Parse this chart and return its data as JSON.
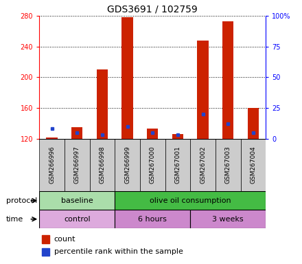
{
  "title": "GDS3691 / 102759",
  "samples": [
    "GSM266996",
    "GSM266997",
    "GSM266998",
    "GSM266999",
    "GSM267000",
    "GSM267001",
    "GSM267002",
    "GSM267003",
    "GSM267004"
  ],
  "count_values": [
    121,
    135,
    210,
    278,
    133,
    126,
    248,
    273,
    160
  ],
  "percentile_values": [
    8,
    5,
    3,
    10,
    5,
    3,
    20,
    12,
    5
  ],
  "ymin": 120,
  "ymax": 280,
  "yticks_left": [
    120,
    160,
    200,
    240,
    280
  ],
  "yticks_right": [
    0,
    25,
    50,
    75,
    100
  ],
  "bar_color": "#cc2200",
  "blue_color": "#2244cc",
  "protocol_groups": [
    {
      "label": "baseline",
      "start": 0,
      "end": 3,
      "color": "#aaddaa"
    },
    {
      "label": "olive oil consumption",
      "start": 3,
      "end": 9,
      "color": "#44bb44"
    }
  ],
  "time_groups": [
    {
      "label": "control",
      "start": 0,
      "end": 3,
      "color": "#ddaadd"
    },
    {
      "label": "6 hours",
      "start": 3,
      "end": 6,
      "color": "#cc88cc"
    },
    {
      "label": "3 weeks",
      "start": 6,
      "end": 9,
      "color": "#cc88cc"
    }
  ],
  "legend_count_label": "count",
  "legend_pct_label": "percentile rank within the sample",
  "bg_color": "#ffffff",
  "bar_width": 0.45,
  "label_bg_color": "#cccccc"
}
